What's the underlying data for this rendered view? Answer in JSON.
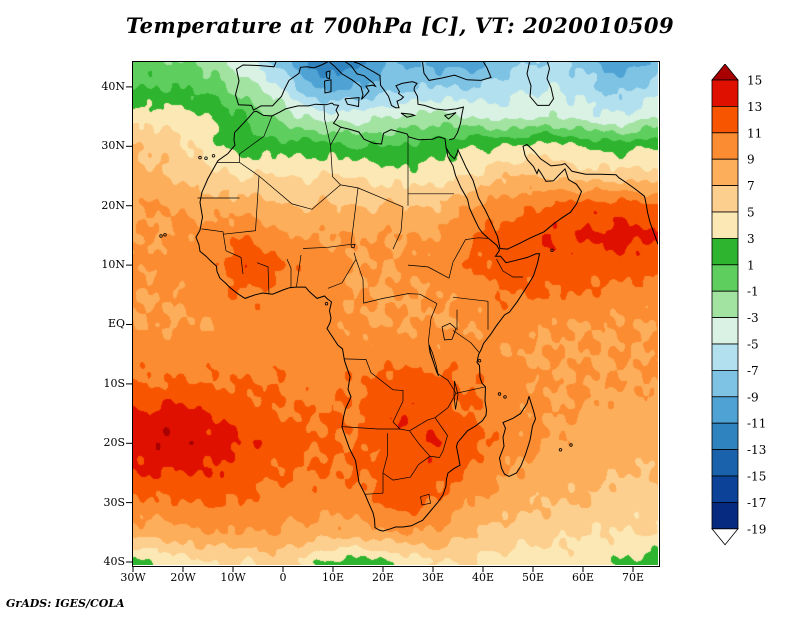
{
  "title": "Temperature at 700hPa [C], VT: 2020010509",
  "footer": "GrADS: IGES/COLA",
  "axes": {
    "y_ticks": [
      {
        "label": "40N",
        "lat": 40
      },
      {
        "label": "30N",
        "lat": 30
      },
      {
        "label": "20N",
        "lat": 20
      },
      {
        "label": "10N",
        "lat": 10
      },
      {
        "label": "EQ",
        "lat": 0
      },
      {
        "label": "10S",
        "lat": -10
      },
      {
        "label": "20S",
        "lat": -20
      },
      {
        "label": "30S",
        "lat": -30
      },
      {
        "label": "40S",
        "lat": -40
      }
    ],
    "x_ticks": [
      {
        "label": "30W",
        "lon": -30
      },
      {
        "label": "20W",
        "lon": -20
      },
      {
        "label": "10W",
        "lon": -10
      },
      {
        "label": "0",
        "lon": 0
      },
      {
        "label": "10E",
        "lon": 10
      },
      {
        "label": "20E",
        "lon": 20
      },
      {
        "label": "30E",
        "lon": 30
      },
      {
        "label": "40E",
        "lon": 40
      },
      {
        "label": "50E",
        "lon": 50
      },
      {
        "label": "60E",
        "lon": 60
      },
      {
        "label": "70E",
        "lon": 70
      }
    ]
  },
  "colorbar": {
    "labels": [
      "15",
      "13",
      "11",
      "9",
      "7",
      "5",
      "3",
      "1",
      "-1",
      "-3",
      "-5",
      "-7",
      "-9",
      "-11",
      "-13",
      "-15",
      "-17",
      "-19"
    ]
  },
  "chart_data": {
    "type": "heatmap",
    "title": "Temperature at 700hPa [C], VT: 2020010509",
    "variable": "Temperature",
    "pressure_level": "700hPa",
    "units": "C",
    "valid_time": "2020010509",
    "legend_position": "right",
    "lon_range": [
      -30,
      75
    ],
    "lat_range": [
      -40.5,
      44.2
    ],
    "levels": [
      15,
      13,
      11,
      9,
      7,
      5,
      3,
      1,
      -1,
      -3,
      -5,
      -7,
      -9,
      -11,
      -13,
      -15,
      -17,
      -19
    ],
    "palette": [
      "#a80000",
      "#e01000",
      "#f85500",
      "#fb8c32",
      "#fdae5a",
      "#fdcf8e",
      "#fbe8b4",
      "#2eb42e",
      "#5ecf5e",
      "#a2e3a2",
      "#d9f2e4",
      "#b3e0ef",
      "#7ec3e4",
      "#4fa3d4",
      "#2f84c0",
      "#1a63ac",
      "#0c4398",
      "#062a80",
      "#ffffff"
    ],
    "grid": {
      "lons": [
        -30,
        -22.5,
        -15,
        -7.5,
        0,
        7.5,
        15,
        22.5,
        30,
        37.5,
        45,
        52.5,
        60,
        67.5,
        75
      ],
      "lats": [
        45,
        40,
        35,
        30,
        25,
        20,
        15,
        10,
        5,
        0,
        -5,
        -10,
        -15,
        -20,
        -25,
        -30,
        -35,
        -40
      ],
      "values": [
        [
          0,
          -1,
          -2,
          -5,
          -9,
          -13,
          -12,
          -9,
          -10,
          -11,
          -8,
          -7,
          -8,
          -11,
          -9
        ],
        [
          1,
          1,
          0,
          -2,
          -5,
          -10,
          -9,
          -8,
          -7,
          -7,
          -6,
          -5,
          -6,
          -8,
          -6
        ],
        [
          4,
          4,
          3,
          1,
          -2,
          -4,
          -4,
          -3,
          -2,
          -3,
          -4,
          -3,
          -4,
          -5,
          -3
        ],
        [
          7,
          6,
          4,
          2,
          2,
          2,
          1,
          1,
          2,
          3,
          3,
          4,
          3,
          2,
          3
        ],
        [
          8,
          7,
          6,
          5,
          5,
          5,
          5,
          4,
          4,
          5,
          7,
          7,
          6,
          6,
          6
        ],
        [
          9,
          9,
          8,
          8,
          7,
          7,
          7,
          7,
          7,
          9,
          10,
          11,
          12,
          12,
          11
        ],
        [
          9,
          9,
          10,
          11,
          9,
          9,
          9,
          9,
          9,
          11,
          12,
          13,
          13,
          14,
          13
        ],
        [
          9,
          10,
          10,
          13,
          11,
          10,
          9,
          9,
          10,
          11,
          12,
          12,
          12,
          12,
          12
        ],
        [
          9,
          9,
          10,
          11,
          10,
          10,
          9,
          9,
          9,
          10,
          11,
          11,
          11,
          10,
          10
        ],
        [
          9,
          9,
          9,
          10,
          10,
          10,
          9,
          9,
          9,
          9,
          10,
          9,
          9,
          9,
          9
        ],
        [
          10,
          10,
          10,
          10,
          10,
          10,
          10,
          10,
          10,
          10,
          9,
          9,
          9,
          9,
          9
        ],
        [
          11,
          11,
          11,
          11,
          11,
          10,
          11,
          12,
          12,
          11,
          10,
          9,
          9,
          9,
          9
        ],
        [
          13,
          14,
          13,
          12,
          11,
          11,
          11,
          13,
          12,
          11,
          10,
          9,
          9,
          8,
          8
        ],
        [
          14,
          15,
          14,
          13,
          12,
          11,
          11,
          12,
          13,
          12,
          10,
          9,
          8,
          8,
          8
        ],
        [
          13,
          13,
          13,
          12,
          11,
          11,
          11,
          12,
          12,
          11,
          9,
          8,
          8,
          7,
          7
        ],
        [
          10,
          11,
          11,
          11,
          10,
          10,
          10,
          12,
          11,
          9,
          8,
          7,
          7,
          6,
          6
        ],
        [
          8,
          8,
          9,
          9,
          9,
          8,
          8,
          9,
          9,
          7,
          6,
          6,
          5,
          5,
          5
        ],
        [
          2,
          4,
          5,
          5,
          6,
          3,
          2,
          3,
          5,
          5,
          4,
          4,
          4,
          3,
          2
        ]
      ]
    }
  }
}
